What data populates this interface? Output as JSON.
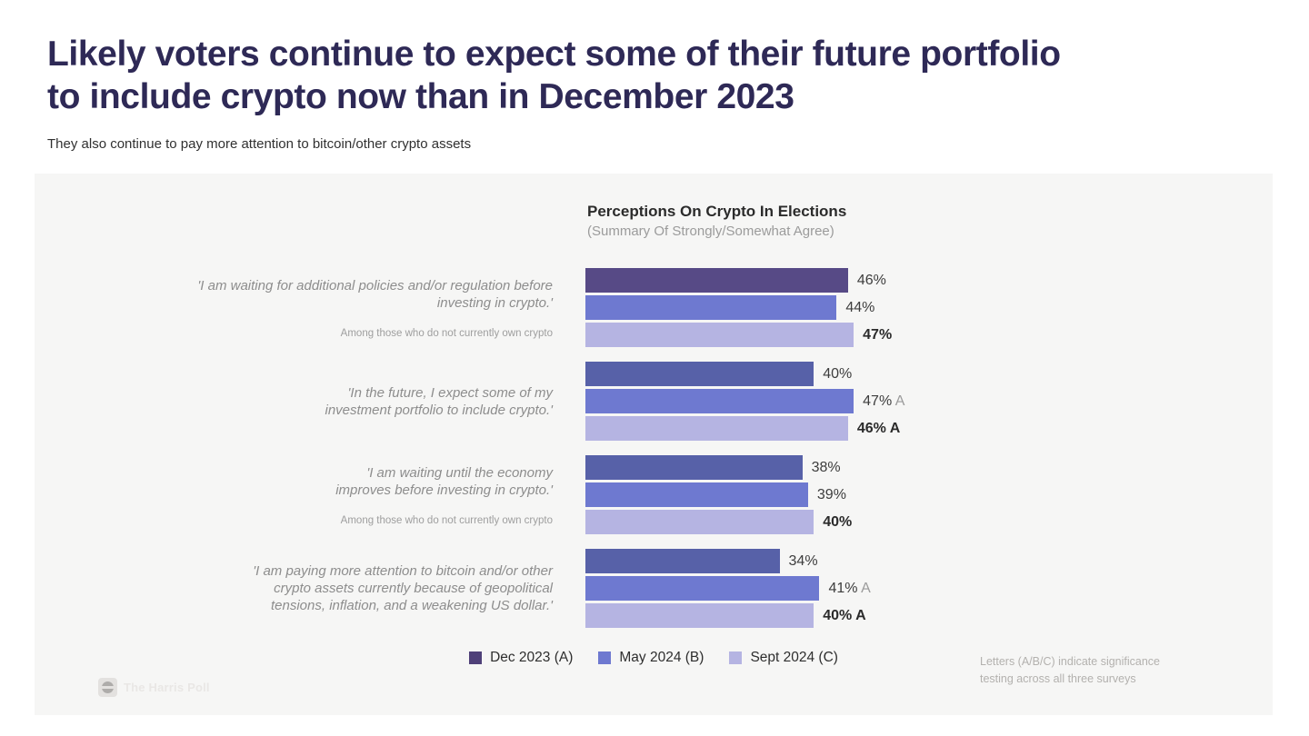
{
  "page": {
    "title_line1": "Likely voters continue to expect some of their future portfolio",
    "title_line2": "to include crypto now than in December 2023",
    "subtitle": "They also continue to pay more attention to bitcoin/other crypto assets"
  },
  "chart": {
    "title": "Perceptions On Crypto In Elections",
    "subtitle": "(Summary Of Strongly/Somewhat Agree)"
  },
  "legend": [
    {
      "label": "Dec 2023 (A)",
      "color": "#4f4079"
    },
    {
      "label": "May 2024 (B)",
      "color": "#6e79d0"
    },
    {
      "label": "Sept 2024 (C)",
      "color": "#b5b4e2"
    }
  ],
  "footnote": {
    "line1": "Letters (A/B/C) indicate significance",
    "line2": "testing across all three surveys"
  },
  "logo_text": "The Harris Poll",
  "chart_data": {
    "type": "bar",
    "orientation": "horizontal",
    "unit": "percent",
    "title": "Perceptions On Crypto In Elections",
    "subtitle": "(Summary Of Strongly/Somewhat Agree)",
    "series_names": [
      "Dec 2023 (A)",
      "May 2024 (B)",
      "Sept 2024 (C)"
    ],
    "series_colors": [
      "#574a86",
      "#6e79d0",
      "#b5b4e2"
    ],
    "note": "Letters (A/B/C) indicate significance testing across all three surveys",
    "groups": [
      {
        "statement_lines": [
          "'I am waiting for additional policies and/or regulation before",
          "investing in crypto.'"
        ],
        "subnote": "Among those who do not currently own crypto",
        "bars": [
          {
            "series": "Dec 2023 (A)",
            "value": 46,
            "label": "46%",
            "suffix": "",
            "bold": false,
            "color": "#574a86"
          },
          {
            "series": "May 2024 (B)",
            "value": 44,
            "label": "44%",
            "suffix": "",
            "bold": false,
            "color": "#6e79d0"
          },
          {
            "series": "Sept 2024 (C)",
            "value": 47,
            "label": "47%",
            "suffix": "",
            "bold": true,
            "color": "#b5b4e2"
          }
        ]
      },
      {
        "statement_lines": [
          "'In the future, I expect some of my",
          "investment portfolio to include crypto.'"
        ],
        "subnote": null,
        "bars": [
          {
            "series": "Dec 2023 (A)",
            "value": 40,
            "label": "40%",
            "suffix": "",
            "bold": false,
            "color": "#5761a8"
          },
          {
            "series": "May 2024 (B)",
            "value": 47,
            "label": "47%",
            "suffix": "A",
            "bold": false,
            "color": "#6e79d0"
          },
          {
            "series": "Sept 2024 (C)",
            "value": 46,
            "label": "46%",
            "suffix": "A",
            "bold": true,
            "color": "#b5b4e2"
          }
        ]
      },
      {
        "statement_lines": [
          "'I am waiting until the economy",
          "improves before investing in crypto.'"
        ],
        "subnote": "Among those who do not currently own crypto",
        "bars": [
          {
            "series": "Dec 2023 (A)",
            "value": 38,
            "label": "38%",
            "suffix": "",
            "bold": false,
            "color": "#5761a8"
          },
          {
            "series": "May 2024 (B)",
            "value": 39,
            "label": "39%",
            "suffix": "",
            "bold": false,
            "color": "#6e79d0"
          },
          {
            "series": "Sept 2024 (C)",
            "value": 40,
            "label": "40%",
            "suffix": "",
            "bold": true,
            "color": "#b5b4e2"
          }
        ]
      },
      {
        "statement_lines": [
          "'I am paying more attention to bitcoin and/or other",
          "crypto assets currently because of geopolitical",
          "tensions, inflation, and a weakening US dollar.'"
        ],
        "subnote": null,
        "bars": [
          {
            "series": "Dec 2023 (A)",
            "value": 34,
            "label": "34%",
            "suffix": "",
            "bold": false,
            "color": "#5761a8"
          },
          {
            "series": "May 2024 (B)",
            "value": 41,
            "label": "41%",
            "suffix": "A",
            "bold": false,
            "color": "#6e79d0"
          },
          {
            "series": "Sept 2024 (C)",
            "value": 40,
            "label": "40%",
            "suffix": "A",
            "bold": true,
            "color": "#b5b4e2"
          }
        ]
      }
    ]
  }
}
